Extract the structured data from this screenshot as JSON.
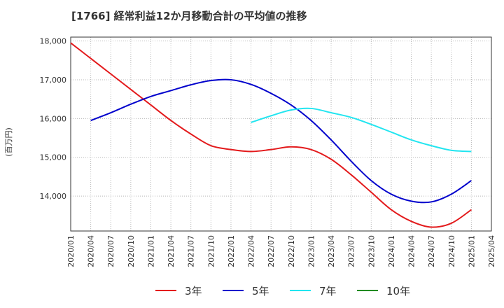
{
  "chart_data": {
    "type": "line",
    "title": "[1766]  経常利益12か月移動合計の平均値の推移",
    "ylabel": "(百万円)",
    "xlabel": "",
    "ylim": [
      13100,
      18100
    ],
    "y_ticks": [
      14000,
      15000,
      16000,
      17000,
      18000
    ],
    "y_tick_labels": [
      "14,000",
      "15,000",
      "16,000",
      "17,000",
      "18,000"
    ],
    "x_ticks": [
      "2020/01",
      "2020/04",
      "2020/07",
      "2020/10",
      "2021/01",
      "2021/04",
      "2021/07",
      "2021/10",
      "2022/01",
      "2022/04",
      "2022/07",
      "2022/10",
      "2023/01",
      "2023/04",
      "2023/07",
      "2023/10",
      "2024/01",
      "2024/04",
      "2024/07",
      "2024/10",
      "2025/01",
      "2025/04"
    ],
    "grid": true,
    "legend_position": "bottom",
    "series": [
      {
        "name": "3年",
        "color": "#e31a1c",
        "points": [
          [
            "2020/01",
            17950
          ],
          [
            "2020/04",
            17550
          ],
          [
            "2020/07",
            17150
          ],
          [
            "2020/10",
            16750
          ],
          [
            "2021/01",
            16350
          ],
          [
            "2021/04",
            15950
          ],
          [
            "2021/07",
            15600
          ],
          [
            "2021/10",
            15300
          ],
          [
            "2022/01",
            15200
          ],
          [
            "2022/04",
            15150
          ],
          [
            "2022/07",
            15200
          ],
          [
            "2022/10",
            15270
          ],
          [
            "2023/01",
            15200
          ],
          [
            "2023/04",
            14950
          ],
          [
            "2023/07",
            14550
          ],
          [
            "2023/10",
            14100
          ],
          [
            "2024/01",
            13650
          ],
          [
            "2024/04",
            13350
          ],
          [
            "2024/07",
            13200
          ],
          [
            "2024/10",
            13300
          ],
          [
            "2025/01",
            13650
          ]
        ]
      },
      {
        "name": "5年",
        "color": "#0000cc",
        "points": [
          [
            "2020/04",
            15950
          ],
          [
            "2020/07",
            16150
          ],
          [
            "2020/10",
            16370
          ],
          [
            "2021/01",
            16570
          ],
          [
            "2021/04",
            16720
          ],
          [
            "2021/07",
            16870
          ],
          [
            "2021/10",
            16980
          ],
          [
            "2022/01",
            17000
          ],
          [
            "2022/04",
            16880
          ],
          [
            "2022/07",
            16650
          ],
          [
            "2022/10",
            16350
          ],
          [
            "2023/01",
            15950
          ],
          [
            "2023/04",
            15450
          ],
          [
            "2023/07",
            14900
          ],
          [
            "2023/10",
            14400
          ],
          [
            "2024/01",
            14050
          ],
          [
            "2024/04",
            13870
          ],
          [
            "2024/07",
            13850
          ],
          [
            "2024/10",
            14050
          ],
          [
            "2025/01",
            14400
          ]
        ]
      },
      {
        "name": "7年",
        "color": "#22e5f0",
        "points": [
          [
            "2022/04",
            15900
          ],
          [
            "2022/07",
            16070
          ],
          [
            "2022/10",
            16220
          ],
          [
            "2023/01",
            16260
          ],
          [
            "2023/04",
            16150
          ],
          [
            "2023/07",
            16030
          ],
          [
            "2023/10",
            15850
          ],
          [
            "2024/01",
            15650
          ],
          [
            "2024/04",
            15450
          ],
          [
            "2024/07",
            15300
          ],
          [
            "2024/10",
            15180
          ],
          [
            "2025/01",
            15150
          ]
        ]
      },
      {
        "name": "10年",
        "color": "#228b22",
        "points": []
      }
    ]
  }
}
